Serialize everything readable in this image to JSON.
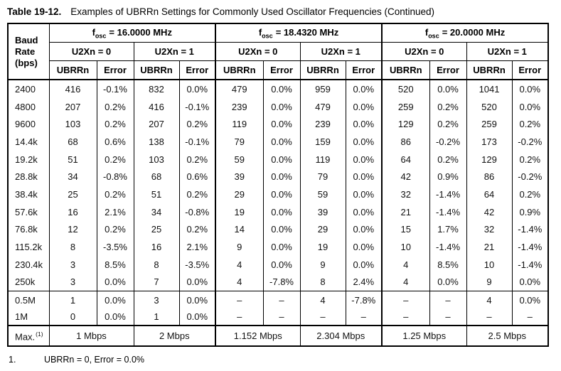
{
  "title": {
    "label": "Table 19-12.",
    "text": "Examples of UBRRn Settings for Commonly Used Oscillator Frequencies (Continued)"
  },
  "table": {
    "corner": {
      "lines": [
        "Baud",
        "Rate",
        "(bps)"
      ]
    },
    "freq_groups": [
      {
        "symbol": "f",
        "subscript": "osc",
        "value": "= 16.0000 MHz"
      },
      {
        "symbol": "f",
        "subscript": "osc",
        "value": "= 18.4320 MHz"
      },
      {
        "symbol": "f",
        "subscript": "osc",
        "value": "= 20.0000 MHz"
      }
    ],
    "u2x_headers": [
      "U2Xn = 0",
      "U2Xn = 1",
      "U2Xn = 0",
      "U2Xn = 1",
      "U2Xn = 0",
      "U2Xn = 1"
    ],
    "sub_headers": [
      "UBRRn",
      "Error",
      "UBRRn",
      "Error",
      "UBRRn",
      "Error",
      "UBRRn",
      "Error",
      "UBRRn",
      "Error",
      "UBRRn",
      "Error"
    ],
    "body_rows": [
      {
        "baud": "2400",
        "values": [
          "416",
          "-0.1%",
          "832",
          "0.0%",
          "479",
          "0.0%",
          "959",
          "0.0%",
          "520",
          "0.0%",
          "1041",
          "0.0%"
        ]
      },
      {
        "baud": "4800",
        "values": [
          "207",
          "0.2%",
          "416",
          "-0.1%",
          "239",
          "0.0%",
          "479",
          "0.0%",
          "259",
          "0.2%",
          "520",
          "0.0%"
        ]
      },
      {
        "baud": "9600",
        "values": [
          "103",
          "0.2%",
          "207",
          "0.2%",
          "119",
          "0.0%",
          "239",
          "0.0%",
          "129",
          "0.2%",
          "259",
          "0.2%"
        ]
      },
      {
        "baud": "14.4k",
        "values": [
          "68",
          "0.6%",
          "138",
          "-0.1%",
          "79",
          "0.0%",
          "159",
          "0.0%",
          "86",
          "-0.2%",
          "173",
          "-0.2%"
        ]
      },
      {
        "baud": "19.2k",
        "values": [
          "51",
          "0.2%",
          "103",
          "0.2%",
          "59",
          "0.0%",
          "119",
          "0.0%",
          "64",
          "0.2%",
          "129",
          "0.2%"
        ]
      },
      {
        "baud": "28.8k",
        "values": [
          "34",
          "-0.8%",
          "68",
          "0.6%",
          "39",
          "0.0%",
          "79",
          "0.0%",
          "42",
          "0.9%",
          "86",
          "-0.2%"
        ]
      },
      {
        "baud": "38.4k",
        "values": [
          "25",
          "0.2%",
          "51",
          "0.2%",
          "29",
          "0.0%",
          "59",
          "0.0%",
          "32",
          "-1.4%",
          "64",
          "0.2%"
        ]
      },
      {
        "baud": "57.6k",
        "values": [
          "16",
          "2.1%",
          "34",
          "-0.8%",
          "19",
          "0.0%",
          "39",
          "0.0%",
          "21",
          "-1.4%",
          "42",
          "0.9%"
        ]
      },
      {
        "baud": "76.8k",
        "values": [
          "12",
          "0.2%",
          "25",
          "0.2%",
          "14",
          "0.0%",
          "29",
          "0.0%",
          "15",
          "1.7%",
          "32",
          "-1.4%"
        ]
      },
      {
        "baud": "115.2k",
        "values": [
          "8",
          "-3.5%",
          "16",
          "2.1%",
          "9",
          "0.0%",
          "19",
          "0.0%",
          "10",
          "-1.4%",
          "21",
          "-1.4%"
        ]
      },
      {
        "baud": "230.4k",
        "values": [
          "3",
          "8.5%",
          "8",
          "-3.5%",
          "4",
          "0.0%",
          "9",
          "0.0%",
          "4",
          "8.5%",
          "10",
          "-1.4%"
        ]
      },
      {
        "baud": "250k",
        "values": [
          "3",
          "0.0%",
          "7",
          "0.0%",
          "4",
          "-7.8%",
          "8",
          "2.4%",
          "4",
          "0.0%",
          "9",
          "0.0%"
        ]
      }
    ],
    "m_rows": [
      {
        "baud": "0.5M",
        "values": [
          "1",
          "0.0%",
          "3",
          "0.0%",
          "–",
          "–",
          "4",
          "-7.8%",
          "–",
          "–",
          "4",
          "0.0%"
        ]
      },
      {
        "baud": "1M",
        "values": [
          "0",
          "0.0%",
          "1",
          "0.0%",
          "–",
          "–",
          "–",
          "–",
          "–",
          "–",
          "–",
          "–"
        ]
      }
    ],
    "max_row": {
      "label": "Max.",
      "footnote_ref": "(1)",
      "values": [
        "1 Mbps",
        "2 Mbps",
        "1.152 Mbps",
        "2.304 Mbps",
        "1.25 Mbps",
        "2.5 Mbps"
      ]
    }
  },
  "footnote": {
    "number": "1.",
    "text": "UBRRn = 0, Error = 0.0%"
  },
  "colors": {
    "border": "#000000",
    "text": "#111111",
    "background": "#ffffff"
  }
}
